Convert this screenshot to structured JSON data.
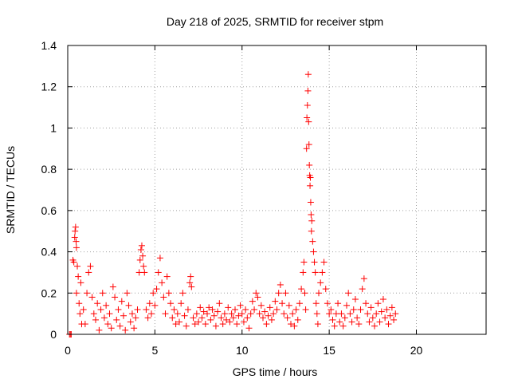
{
  "chart_data": {
    "type": "scatter",
    "title": "Day 218 of 2025, SRMTID for receiver stpm",
    "xlabel": "GPS time / hours",
    "ylabel": "SRMTID / TECUs",
    "xlim": [
      0,
      24
    ],
    "ylim": [
      0,
      1.4
    ],
    "xticks": [
      0,
      5,
      10,
      15,
      20
    ],
    "xtick_labels": [
      "0",
      "5",
      "10",
      "15",
      "20"
    ],
    "yticks": [
      0,
      0.2,
      0.4,
      0.6,
      0.8,
      1,
      1.2,
      1.4
    ],
    "ytick_labels": [
      "0",
      "0.2",
      "0.4",
      "0.6",
      "0.8",
      "1",
      "1.2",
      "1.4"
    ],
    "grid": true,
    "marker": "+",
    "color": "#ff0000",
    "series": [
      {
        "name": "SRMTID",
        "points": [
          [
            0.1,
            0.0
          ],
          [
            0.15,
            0.0
          ],
          [
            0.2,
            0.0
          ],
          [
            0.3,
            0.36
          ],
          [
            0.35,
            0.35
          ],
          [
            0.4,
            0.47
          ],
          [
            0.42,
            0.5
          ],
          [
            0.45,
            0.52
          ],
          [
            0.48,
            0.45
          ],
          [
            0.5,
            0.42
          ],
          [
            0.55,
            0.33
          ],
          [
            0.6,
            0.28
          ],
          [
            0.5,
            0.2
          ],
          [
            0.65,
            0.15
          ],
          [
            0.7,
            0.1
          ],
          [
            0.75,
            0.25
          ],
          [
            0.8,
            0.05
          ],
          [
            0.9,
            0.12
          ],
          [
            1.0,
            0.05
          ],
          [
            1.1,
            0.2
          ],
          [
            1.2,
            0.3
          ],
          [
            1.3,
            0.33
          ],
          [
            1.4,
            0.18
          ],
          [
            1.5,
            0.1
          ],
          [
            1.6,
            0.07
          ],
          [
            1.7,
            0.15
          ],
          [
            1.8,
            0.02
          ],
          [
            1.9,
            0.12
          ],
          [
            2.0,
            0.2
          ],
          [
            2.1,
            0.08
          ],
          [
            2.2,
            0.14
          ],
          [
            2.3,
            0.05
          ],
          [
            2.4,
            0.1
          ],
          [
            2.5,
            0.03
          ],
          [
            2.6,
            0.23
          ],
          [
            2.7,
            0.18
          ],
          [
            2.8,
            0.07
          ],
          [
            2.9,
            0.12
          ],
          [
            3.0,
            0.04
          ],
          [
            3.1,
            0.16
          ],
          [
            3.2,
            0.09
          ],
          [
            3.3,
            0.02
          ],
          [
            3.4,
            0.2
          ],
          [
            3.5,
            0.14
          ],
          [
            3.6,
            0.06
          ],
          [
            3.7,
            0.1
          ],
          [
            3.8,
            0.03
          ],
          [
            3.9,
            0.08
          ],
          [
            4.0,
            0.12
          ],
          [
            4.1,
            0.3
          ],
          [
            4.15,
            0.36
          ],
          [
            4.2,
            0.41
          ],
          [
            4.25,
            0.43
          ],
          [
            4.3,
            0.38
          ],
          [
            4.35,
            0.33
          ],
          [
            4.4,
            0.3
          ],
          [
            4.5,
            0.12
          ],
          [
            4.6,
            0.08
          ],
          [
            4.7,
            0.15
          ],
          [
            4.8,
            0.1
          ],
          [
            4.9,
            0.2
          ],
          [
            5.0,
            0.14
          ],
          [
            5.1,
            0.22
          ],
          [
            5.2,
            0.3
          ],
          [
            5.3,
            0.37
          ],
          [
            5.4,
            0.25
          ],
          [
            5.5,
            0.18
          ],
          [
            5.6,
            0.1
          ],
          [
            5.7,
            0.28
          ],
          [
            5.8,
            0.2
          ],
          [
            5.9,
            0.15
          ],
          [
            6.0,
            0.08
          ],
          [
            6.1,
            0.12
          ],
          [
            6.2,
            0.05
          ],
          [
            6.3,
            0.1
          ],
          [
            6.4,
            0.06
          ],
          [
            6.5,
            0.15
          ],
          [
            6.6,
            0.2
          ],
          [
            6.7,
            0.09
          ],
          [
            6.8,
            0.04
          ],
          [
            6.9,
            0.12
          ],
          [
            7.0,
            0.25
          ],
          [
            7.05,
            0.28
          ],
          [
            7.1,
            0.23
          ],
          [
            7.2,
            0.08
          ],
          [
            7.3,
            0.05
          ],
          [
            7.4,
            0.1
          ],
          [
            7.5,
            0.06
          ],
          [
            7.6,
            0.13
          ],
          [
            7.7,
            0.08
          ],
          [
            7.8,
            0.11
          ],
          [
            7.9,
            0.05
          ],
          [
            8.0,
            0.1
          ],
          [
            8.1,
            0.13
          ],
          [
            8.2,
            0.07
          ],
          [
            8.3,
            0.12
          ],
          [
            8.4,
            0.09
          ],
          [
            8.5,
            0.04
          ],
          [
            8.6,
            0.11
          ],
          [
            8.7,
            0.15
          ],
          [
            8.8,
            0.08
          ],
          [
            8.9,
            0.05
          ],
          [
            9.0,
            0.1
          ],
          [
            9.1,
            0.07
          ],
          [
            9.2,
            0.13
          ],
          [
            9.3,
            0.06
          ],
          [
            9.4,
            0.1
          ],
          [
            9.5,
            0.08
          ],
          [
            9.6,
            0.12
          ],
          [
            9.7,
            0.05
          ],
          [
            9.8,
            0.09
          ],
          [
            9.9,
            0.14
          ],
          [
            10.0,
            0.1
          ],
          [
            10.1,
            0.06
          ],
          [
            10.2,
            0.12
          ],
          [
            10.3,
            0.08
          ],
          [
            10.4,
            0.03
          ],
          [
            10.5,
            0.1
          ],
          [
            10.6,
            0.16
          ],
          [
            10.7,
            0.12
          ],
          [
            10.8,
            0.2
          ],
          [
            10.9,
            0.18
          ],
          [
            11.0,
            0.1
          ],
          [
            11.1,
            0.14
          ],
          [
            11.2,
            0.08
          ],
          [
            11.3,
            0.11
          ],
          [
            11.4,
            0.05
          ],
          [
            11.5,
            0.09
          ],
          [
            11.6,
            0.13
          ],
          [
            11.7,
            0.07
          ],
          [
            11.8,
            0.1
          ],
          [
            11.9,
            0.16
          ],
          [
            12.0,
            0.12
          ],
          [
            12.1,
            0.2
          ],
          [
            12.2,
            0.24
          ],
          [
            12.3,
            0.15
          ],
          [
            12.4,
            0.1
          ],
          [
            12.5,
            0.2
          ],
          [
            12.6,
            0.08
          ],
          [
            12.7,
            0.14
          ],
          [
            12.8,
            0.05
          ],
          [
            12.9,
            0.1
          ],
          [
            13.0,
            0.04
          ],
          [
            13.1,
            0.12
          ],
          [
            13.2,
            0.07
          ],
          [
            13.3,
            0.15
          ],
          [
            13.4,
            0.22
          ],
          [
            13.5,
            0.3
          ],
          [
            13.55,
            0.35
          ],
          [
            13.6,
            0.2
          ],
          [
            13.65,
            0.12
          ],
          [
            13.7,
            0.9
          ],
          [
            13.72,
            1.05
          ],
          [
            13.75,
            1.11
          ],
          [
            13.78,
            1.18
          ],
          [
            13.8,
            1.26
          ],
          [
            13.82,
            1.03
          ],
          [
            13.84,
            0.92
          ],
          [
            13.86,
            0.82
          ],
          [
            13.88,
            0.77
          ],
          [
            13.9,
            0.72
          ],
          [
            13.92,
            0.76
          ],
          [
            13.94,
            0.64
          ],
          [
            13.96,
            0.58
          ],
          [
            13.98,
            0.5
          ],
          [
            14.0,
            0.55
          ],
          [
            14.05,
            0.45
          ],
          [
            14.1,
            0.4
          ],
          [
            14.15,
            0.35
          ],
          [
            14.2,
            0.3
          ],
          [
            14.25,
            0.15
          ],
          [
            14.3,
            0.1
          ],
          [
            14.35,
            0.05
          ],
          [
            14.4,
            0.2
          ],
          [
            14.5,
            0.25
          ],
          [
            14.6,
            0.3
          ],
          [
            14.7,
            0.35
          ],
          [
            14.8,
            0.22
          ],
          [
            14.9,
            0.15
          ],
          [
            15.0,
            0.1
          ],
          [
            15.1,
            0.12
          ],
          [
            15.2,
            0.07
          ],
          [
            15.3,
            0.04
          ],
          [
            15.4,
            0.1
          ],
          [
            15.5,
            0.15
          ],
          [
            15.6,
            0.06
          ],
          [
            15.7,
            0.1
          ],
          [
            15.8,
            0.04
          ],
          [
            15.9,
            0.08
          ],
          [
            16.0,
            0.14
          ],
          [
            16.1,
            0.2
          ],
          [
            16.2,
            0.1
          ],
          [
            16.3,
            0.06
          ],
          [
            16.4,
            0.12
          ],
          [
            16.5,
            0.17
          ],
          [
            16.6,
            0.08
          ],
          [
            16.7,
            0.05
          ],
          [
            16.8,
            0.12
          ],
          [
            16.9,
            0.22
          ],
          [
            17.0,
            0.27
          ],
          [
            17.1,
            0.15
          ],
          [
            17.2,
            0.1
          ],
          [
            17.3,
            0.06
          ],
          [
            17.4,
            0.13
          ],
          [
            17.5,
            0.08
          ],
          [
            17.6,
            0.04
          ],
          [
            17.7,
            0.1
          ],
          [
            17.8,
            0.15
          ],
          [
            17.9,
            0.06
          ],
          [
            18.0,
            0.11
          ],
          [
            18.1,
            0.17
          ],
          [
            18.2,
            0.08
          ],
          [
            18.3,
            0.12
          ],
          [
            18.4,
            0.05
          ],
          [
            18.5,
            0.09
          ],
          [
            18.6,
            0.13
          ],
          [
            18.7,
            0.07
          ],
          [
            18.8,
            0.1
          ]
        ]
      }
    ]
  }
}
